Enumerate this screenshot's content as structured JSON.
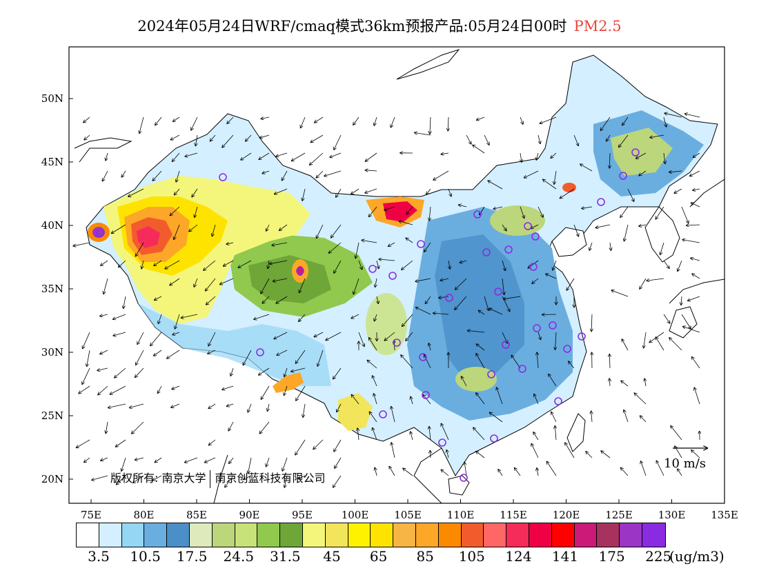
{
  "title": {
    "main": "2024年05月24日WRF/cmaq模式36km预报产品:05月24日00时",
    "pollutant": "PM2.5"
  },
  "axes": {
    "lat_ticks": [
      "50N",
      "45N",
      "40N",
      "35N",
      "30N",
      "25N",
      "20N"
    ],
    "lon_ticks": [
      "75E",
      "80E",
      "85E",
      "90E",
      "95E",
      "100E",
      "105E",
      "110E",
      "115E",
      "120E",
      "125E",
      "130E",
      "135E"
    ]
  },
  "credit": {
    "part1": "版权所有: 南京大学",
    "part2": "南京创蓝科技有限公司"
  },
  "wind_scale_label": "10 m/s",
  "legend": {
    "colors": [
      "#ffffff",
      "#d4efff",
      "#96d6f5",
      "#6aaee0",
      "#4a8fc8",
      "#dfeabc",
      "#bcd67c",
      "#c8e27a",
      "#90c94e",
      "#6ea638",
      "#f3f67a",
      "#f2e55c",
      "#fef200",
      "#ffe300",
      "#f6b544",
      "#fca727",
      "#fb8a00",
      "#f25c2d",
      "#ff6766",
      "#f52b59",
      "#ef0045",
      "#ff0000",
      "#cc1a78",
      "#a8325e",
      "#9a35c6",
      "#8a2be2"
    ],
    "labels": [
      "3.5",
      "10.5",
      "17.5",
      "24.5",
      "31.5",
      "45",
      "65",
      "85",
      "105",
      "124",
      "141",
      "175",
      "225"
    ],
    "unit": "(ug/m3)"
  },
  "colors": {
    "station_marker": "#8a2be2",
    "title_accent": "#e8453c"
  }
}
